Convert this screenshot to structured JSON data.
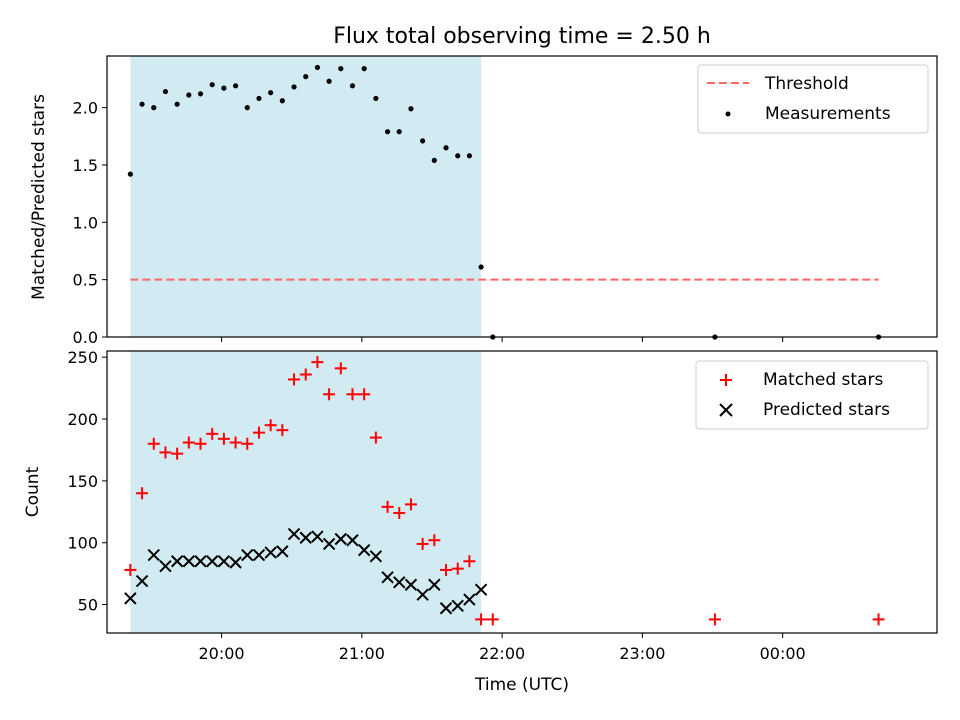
{
  "chart_data": [
    {
      "type": "scatter",
      "title": "Flux total observing time = 2.50 h",
      "xlabel": "",
      "ylabel": "Matched/Predicted stars",
      "ylim": [
        0,
        2.45
      ],
      "xlim": [
        "19:11",
        "25:06"
      ],
      "yticks": [
        "0.0",
        "0.5",
        "1.0",
        "1.5",
        "2.0"
      ],
      "grid": false,
      "legend_position": "upper right",
      "shaded_interval": {
        "start": "19:21",
        "end": "21:51",
        "color": "#add8e6"
      },
      "threshold": {
        "name": "Threshold",
        "value": 0.5,
        "color": "#ff6666",
        "style": "dashed"
      },
      "series": [
        {
          "name": "Measurements",
          "marker": "dot",
          "color": "#000000",
          "x": [
            "19:21",
            "19:26",
            "19:31",
            "19:36",
            "19:41",
            "19:46",
            "19:51",
            "19:56",
            "20:01",
            "20:06",
            "20:11",
            "20:16",
            "20:21",
            "20:26",
            "20:31",
            "20:36",
            "20:41",
            "20:46",
            "20:51",
            "20:56",
            "21:01",
            "21:06",
            "21:11",
            "21:16",
            "21:21",
            "21:26",
            "21:31",
            "21:36",
            "21:41",
            "21:46",
            "21:51",
            "21:56",
            "23:31",
            "24:41"
          ],
          "y": [
            1.42,
            2.03,
            2.0,
            2.14,
            2.03,
            2.11,
            2.12,
            2.2,
            2.17,
            2.19,
            2.0,
            2.08,
            2.13,
            2.06,
            2.18,
            2.27,
            2.35,
            2.23,
            2.34,
            2.19,
            2.34,
            2.08,
            1.79,
            1.79,
            1.99,
            1.71,
            1.54,
            1.65,
            1.58,
            1.58,
            0.61,
            0.0,
            0.0,
            0.0
          ]
        }
      ]
    },
    {
      "type": "scatter",
      "title": "",
      "xlabel": "Time (UTC)",
      "ylabel": "Count",
      "ylim": [
        27,
        255
      ],
      "xlim": [
        "19:11",
        "25:06"
      ],
      "xticks": [
        "20:00",
        "21:00",
        "22:00",
        "23:00",
        "00:00"
      ],
      "yticks": [
        "50",
        "100",
        "150",
        "200",
        "250"
      ],
      "grid": false,
      "legend_position": "upper right",
      "shaded_interval": {
        "start": "19:21",
        "end": "21:51",
        "color": "#add8e6"
      },
      "series": [
        {
          "name": "Matched stars",
          "marker": "plus",
          "color": "#ff0000",
          "x": [
            "19:21",
            "19:26",
            "19:31",
            "19:36",
            "19:41",
            "19:46",
            "19:51",
            "19:56",
            "20:01",
            "20:06",
            "20:11",
            "20:16",
            "20:21",
            "20:26",
            "20:31",
            "20:36",
            "20:41",
            "20:46",
            "20:51",
            "20:56",
            "21:01",
            "21:06",
            "21:11",
            "21:16",
            "21:21",
            "21:26",
            "21:31",
            "21:36",
            "21:41",
            "21:46",
            "21:51",
            "21:56",
            "23:31",
            "24:41"
          ],
          "y": [
            78,
            140,
            180,
            173,
            172,
            181,
            180,
            188,
            184,
            181,
            180,
            189,
            195,
            191,
            232,
            236,
            246,
            220,
            241,
            220,
            220,
            185,
            129,
            124,
            131,
            99,
            102,
            78,
            79,
            85,
            38,
            38,
            38,
            38
          ]
        },
        {
          "name": "Predicted stars",
          "marker": "x",
          "color": "#000000",
          "x": [
            "19:21",
            "19:26",
            "19:31",
            "19:36",
            "19:41",
            "19:46",
            "19:51",
            "19:56",
            "20:01",
            "20:06",
            "20:11",
            "20:16",
            "20:21",
            "20:26",
            "20:31",
            "20:36",
            "20:41",
            "20:46",
            "20:51",
            "20:56",
            "21:01",
            "21:06",
            "21:11",
            "21:16",
            "21:21",
            "21:26",
            "21:31",
            "21:36",
            "21:41",
            "21:46",
            "21:51"
          ],
          "y": [
            55,
            69,
            90,
            81,
            85,
            85,
            85,
            85,
            85,
            84,
            90,
            90,
            92,
            93,
            107,
            104,
            105,
            99,
            103,
            102,
            94,
            89,
            72,
            68,
            66,
            58,
            66,
            47,
            49,
            54,
            62
          ]
        }
      ]
    }
  ]
}
